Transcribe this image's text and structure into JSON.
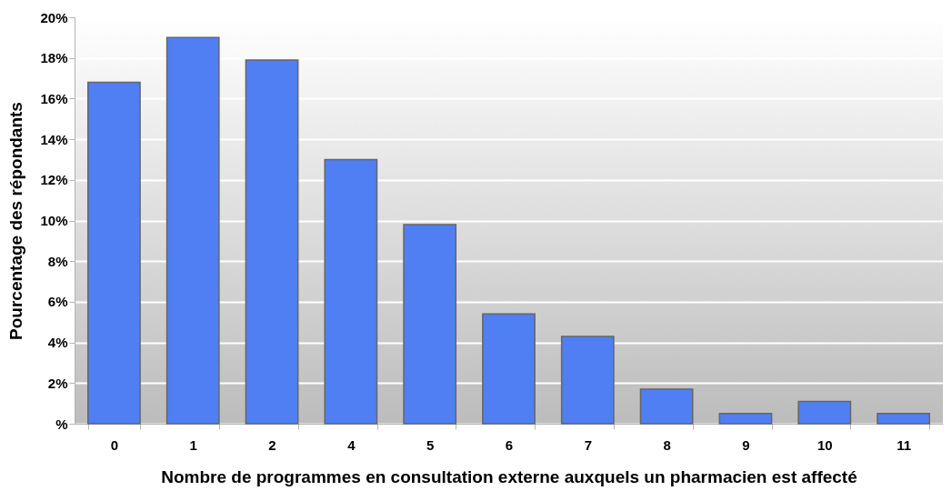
{
  "chart_data": {
    "type": "bar",
    "xlabel": "Nombre de programmes en consultation externe auxquels un pharmacien est affecté",
    "ylabel": "Pourcentage des répondants",
    "categories": [
      "0",
      "1",
      "2",
      "4",
      "5",
      "6",
      "7",
      "8",
      "9",
      "10",
      "11"
    ],
    "values": [
      16.8,
      19.0,
      17.9,
      13.0,
      9.8,
      5.4,
      4.3,
      1.7,
      0.5,
      1.1,
      0.5
    ],
    "color": "#4f7ff2",
    "ylim": [
      0,
      20
    ],
    "yticks": [
      {
        "value": 0,
        "label": "%"
      },
      {
        "value": 2,
        "label": "2%"
      },
      {
        "value": 4,
        "label": "4%"
      },
      {
        "value": 6,
        "label": "6%"
      },
      {
        "value": 8,
        "label": "8%"
      },
      {
        "value": 10,
        "label": "10%"
      },
      {
        "value": 12,
        "label": "12%"
      },
      {
        "value": 14,
        "label": "14%"
      },
      {
        "value": 16,
        "label": "16%"
      },
      {
        "value": 18,
        "label": "18%"
      },
      {
        "value": 20,
        "label": "20%"
      }
    ],
    "grid": "y"
  }
}
